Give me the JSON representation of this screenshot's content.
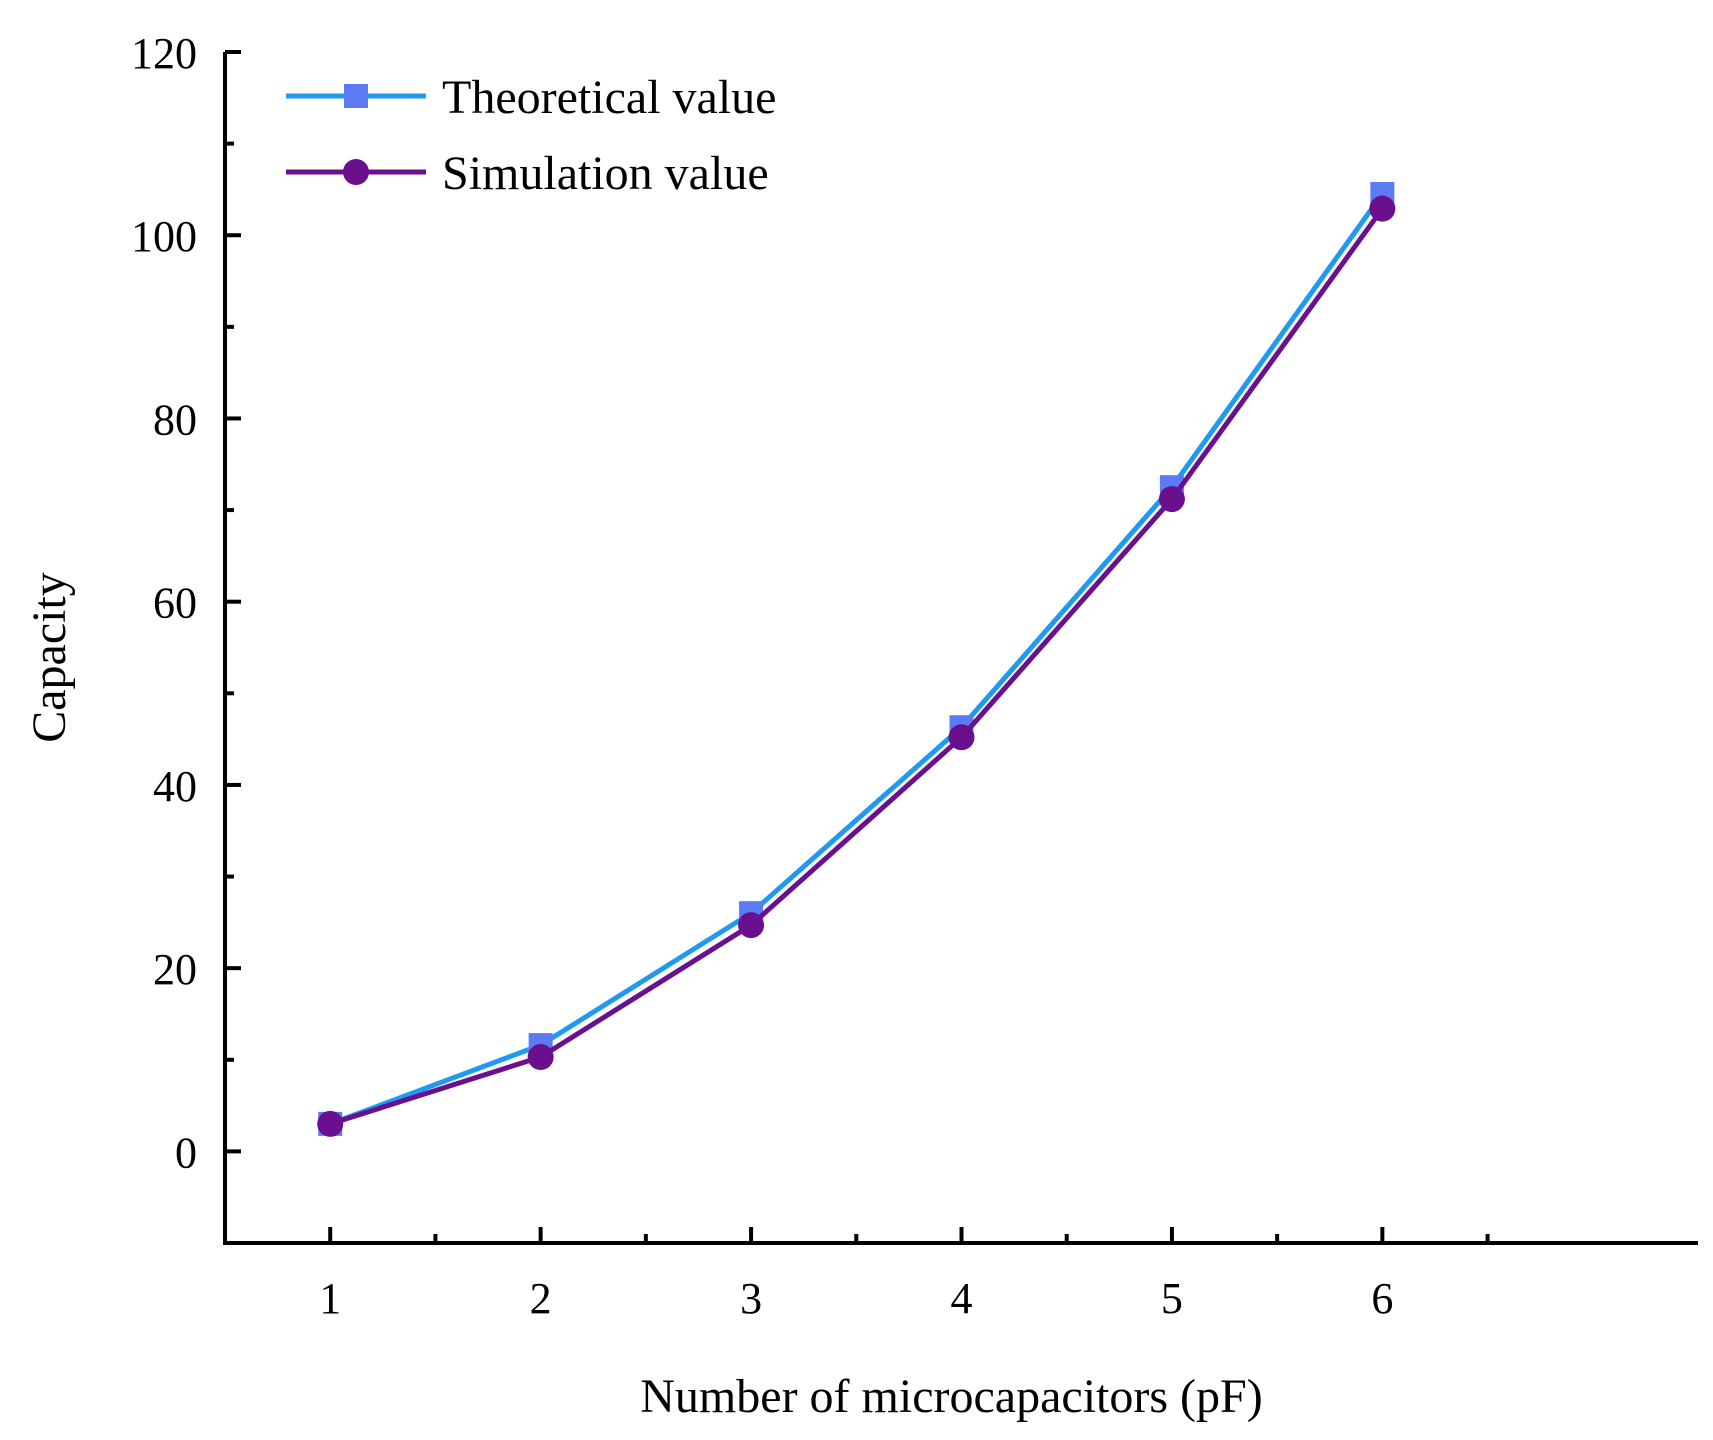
{
  "chart_data": {
    "type": "line",
    "title": "",
    "xlabel": "Number of microcapacitors (pF)",
    "ylabel": "Capacity",
    "x": [
      1,
      2,
      3,
      4,
      5,
      6
    ],
    "xlim": [
      0.5,
      7.5
    ],
    "ylim": [
      -10,
      120
    ],
    "xticks": [
      "1",
      "2",
      "3",
      "4",
      "5",
      "6"
    ],
    "yticks": [
      "0",
      "20",
      "40",
      "60",
      "80",
      "100",
      "120"
    ],
    "grid": false,
    "legend_position": "top-left",
    "series": [
      {
        "name": "Theoretical value",
        "marker": "square",
        "line_color": "#1E9BF0",
        "marker_color": "#5B7BF5",
        "values": [
          3,
          11.6,
          26,
          46.3,
          72.5,
          104.5
        ]
      },
      {
        "name": "Simulation value",
        "marker": "circle",
        "line_color": "#6A0F8E",
        "marker_color": "#6A0F8E",
        "values": [
          3,
          10.3,
          24.7,
          45.2,
          71.2,
          102.9
        ]
      }
    ]
  }
}
